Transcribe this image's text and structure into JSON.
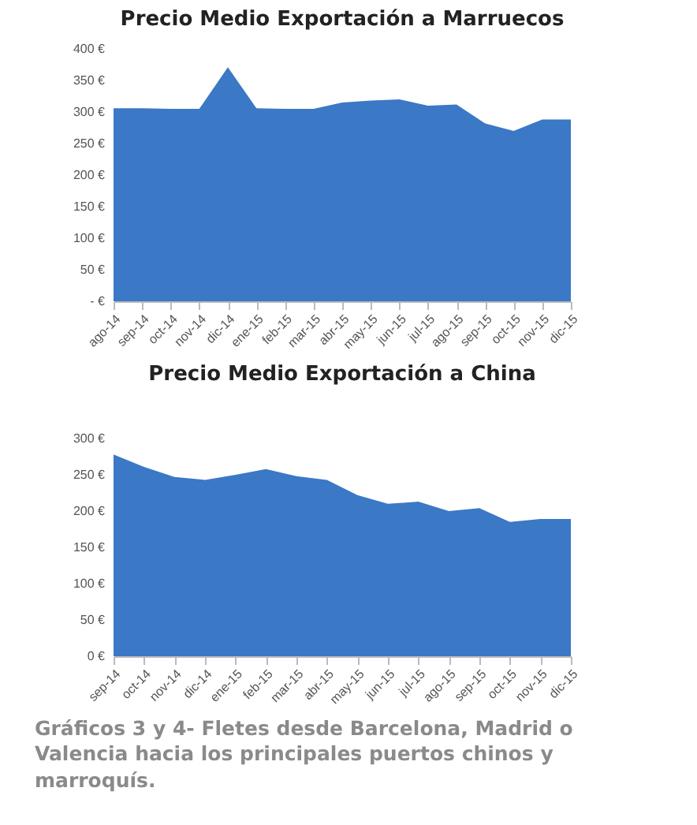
{
  "chart_data": [
    {
      "type": "area",
      "title": "Precio Medio Exportación a Marruecos",
      "categories": [
        "ago-14",
        "sep-14",
        "oct-14",
        "nov-14",
        "dic-14",
        "ene-15",
        "feb-15",
        "mar-15",
        "abr-15",
        "may-15",
        "jun-15",
        "jul-15",
        "ago-15",
        "sep-15",
        "oct-15",
        "nov-15",
        "dic-15"
      ],
      "series": [
        {
          "color": "#3b78c6",
          "values": [
            306,
            306,
            305,
            305,
            371,
            306,
            305,
            305,
            315,
            318,
            320,
            310,
            312,
            282,
            270,
            288,
            288
          ]
        }
      ],
      "ylim": [
        0,
        400
      ],
      "yticks": [
        {
          "value": 0,
          "label": "- €"
        },
        {
          "value": 50,
          "label": "50 €"
        },
        {
          "value": 100,
          "label": "100 €"
        },
        {
          "value": 150,
          "label": "150 €"
        },
        {
          "value": 200,
          "label": "200 €"
        },
        {
          "value": 250,
          "label": "250 €"
        },
        {
          "value": 300,
          "label": "300 €"
        },
        {
          "value": 350,
          "label": "350 €"
        },
        {
          "value": 400,
          "label": "400 €"
        }
      ]
    },
    {
      "type": "area",
      "title": "Precio Medio Exportación a China",
      "categories": [
        "sep-14",
        "oct-14",
        "nov-14",
        "dic-14",
        "ene-15",
        "feb-15",
        "mar-15",
        "abr-15",
        "may-15",
        "jun-15",
        "jul-15",
        "ago-15",
        "sep-15",
        "oct-15",
        "nov-15",
        "dic-15"
      ],
      "series": [
        {
          "color": "#3b78c6",
          "values": [
            278,
            261,
            247,
            243,
            250,
            258,
            248,
            243,
            222,
            210,
            213,
            200,
            204,
            185,
            189,
            189
          ]
        }
      ],
      "ylim": [
        0,
        300
      ],
      "yticks": [
        {
          "value": 0,
          "label": "0 €"
        },
        {
          "value": 50,
          "label": "50 €"
        },
        {
          "value": 100,
          "label": "100 €"
        },
        {
          "value": 150,
          "label": "150 €"
        },
        {
          "value": 200,
          "label": "200 €"
        },
        {
          "value": 250,
          "label": "250 €"
        },
        {
          "value": 300,
          "label": "300 €"
        }
      ],
      "annotations": [
        "Gráficos 3 y 4- Fletes desde Barcelona, Madrid o Valencia hacia los principales puertos chinos y marroquís."
      ]
    }
  ]
}
